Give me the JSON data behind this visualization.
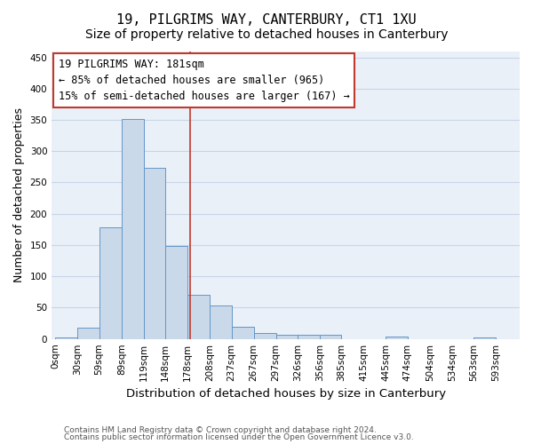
{
  "title1": "19, PILGRIMS WAY, CANTERBURY, CT1 1XU",
  "title2": "Size of property relative to detached houses in Canterbury",
  "xlabel": "Distribution of detached houses by size in Canterbury",
  "ylabel": "Number of detached properties",
  "footer1": "Contains HM Land Registry data © Crown copyright and database right 2024.",
  "footer2": "Contains public sector information licensed under the Open Government Licence v3.0.",
  "bar_labels": [
    "0sqm",
    "30sqm",
    "59sqm",
    "89sqm",
    "119sqm",
    "148sqm",
    "178sqm",
    "208sqm",
    "237sqm",
    "267sqm",
    "297sqm",
    "326sqm",
    "356sqm",
    "385sqm",
    "415sqm",
    "445sqm",
    "474sqm",
    "504sqm",
    "534sqm",
    "563sqm",
    "593sqm"
  ],
  "bar_values": [
    3,
    18,
    178,
    351,
    273,
    148,
    70,
    54,
    20,
    9,
    6,
    6,
    7,
    0,
    0,
    4,
    0,
    0,
    0,
    3
  ],
  "bar_color": "#c9d9ea",
  "bar_edge_color": "#6496c8",
  "annotation_line1": "19 PILGRIMS WAY: 181sqm",
  "annotation_line2": "← 85% of detached houses are smaller (965)",
  "annotation_line3": "15% of semi-detached houses are larger (167) →",
  "vline_x": 181,
  "vline_color": "#c0392b",
  "ylim": [
    0,
    460
  ],
  "yticks": [
    0,
    50,
    100,
    150,
    200,
    250,
    300,
    350,
    400,
    450
  ],
  "grid_color": "#c8d4e8",
  "background_color": "#eaf0f8",
  "title1_fontsize": 11,
  "title2_fontsize": 10,
  "annotation_fontsize": 8.5,
  "ylabel_fontsize": 9,
  "xlabel_fontsize": 9.5,
  "tick_fontsize": 7.5,
  "footer_fontsize": 6.5
}
